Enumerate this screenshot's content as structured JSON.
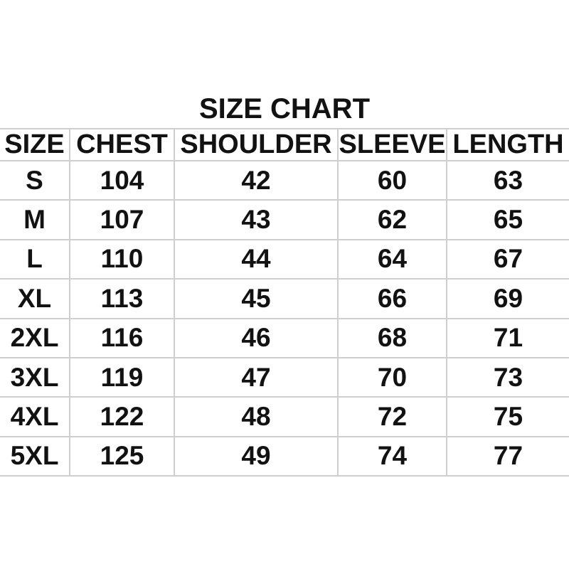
{
  "colors": {
    "background": "#ffffff",
    "text": "#121212",
    "gridline": "#cfcfcf"
  },
  "chart_data": {
    "type": "table",
    "title": "SIZE CHART",
    "columns": [
      "SIZE",
      "CHEST",
      "SHOULDER",
      "SLEEVE",
      "LENGTH"
    ],
    "rows": [
      [
        "S",
        "104",
        "42",
        "60",
        "63"
      ],
      [
        "M",
        "107",
        "43",
        "62",
        "65"
      ],
      [
        "L",
        "110",
        "44",
        "64",
        "67"
      ],
      [
        "XL",
        "113",
        "45",
        "66",
        "69"
      ],
      [
        "2XL",
        "116",
        "46",
        "68",
        "71"
      ],
      [
        "3XL",
        "119",
        "47",
        "70",
        "73"
      ],
      [
        "4XL",
        "122",
        "48",
        "72",
        "75"
      ],
      [
        "5XL",
        "125",
        "49",
        "74",
        "77"
      ]
    ]
  }
}
